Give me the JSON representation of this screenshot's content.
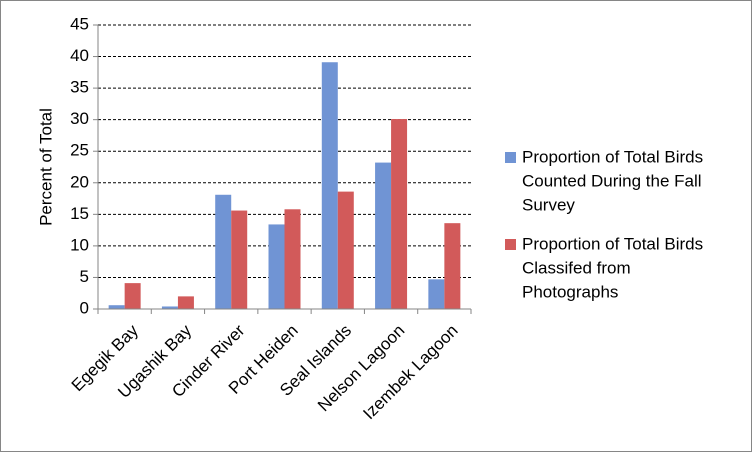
{
  "chart_data": {
    "type": "bar",
    "title": "",
    "xlabel": "",
    "ylabel": "Percent of Total",
    "ylim": [
      0,
      45
    ],
    "yticks": [
      0,
      5,
      10,
      15,
      20,
      25,
      30,
      35,
      40,
      45
    ],
    "grid": "horizontal dashed",
    "legend_position": "right",
    "categories": [
      "Egegik Bay",
      "Ugashik Bay",
      "Cinder River",
      "Port Heiden",
      "Seal Islands",
      "Nelson Lagoon",
      "Izembek Lagoon"
    ],
    "series": [
      {
        "name": "Proportion of Total Birds Counted During the Fall Survey",
        "legend_lines": [
          "Proportion of Total Birds",
          "Counted During the Fall",
          "Survey"
        ],
        "color": "#7094D4",
        "values": [
          0.6,
          0.4,
          18.1,
          13.4,
          39.1,
          23.2,
          4.7
        ]
      },
      {
        "name": "Proportion of Total Birds Classifed from Photographs",
        "legend_lines": [
          "Proportion of Total Birds",
          "Classifed from",
          "Photographs"
        ],
        "color": "#D25A5A",
        "values": [
          4.1,
          2.0,
          15.6,
          15.8,
          18.6,
          30.1,
          13.6
        ]
      }
    ]
  }
}
